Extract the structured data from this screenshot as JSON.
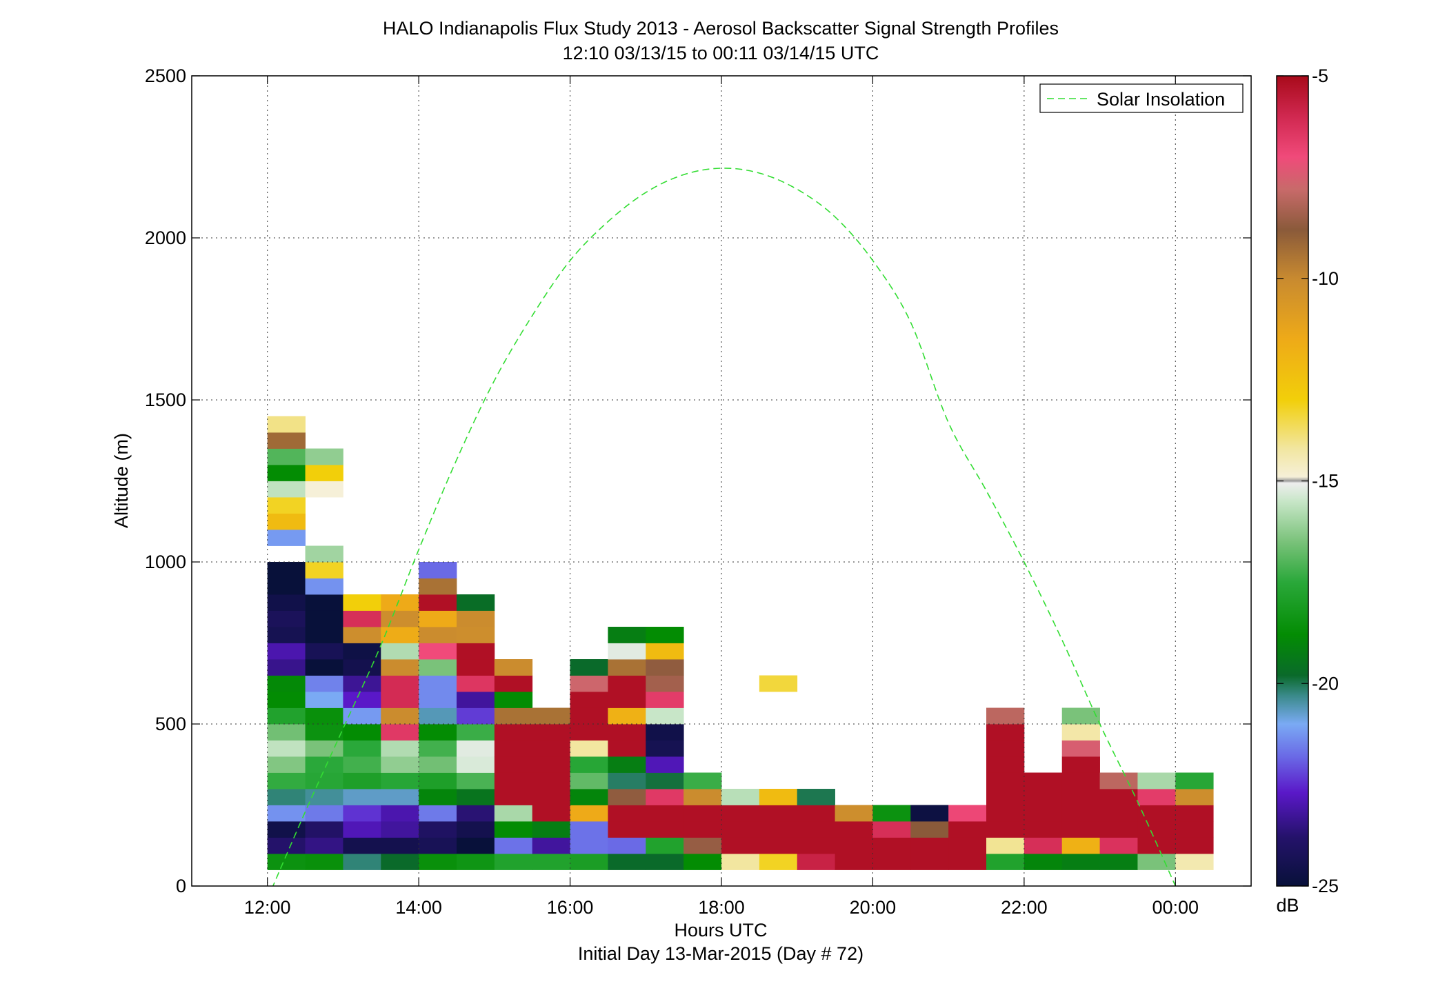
{
  "chart_data": {
    "type": "heatmap",
    "title": "HALO Indianapolis Flux Study 2013 - Aerosol Backscatter Signal Strength Profiles",
    "subtitle": "12:10 03/13/15 to 00:11 03/14/15  UTC",
    "xlabel": "Hours UTC",
    "xlabel2": "Initial Day 13-Mar-2015 (Day # 72)",
    "ylabel": "Altitude (m)",
    "xlim": [
      11,
      25
    ],
    "ylim": [
      0,
      2500
    ],
    "x_ticks": [
      12,
      14,
      16,
      18,
      20,
      22,
      24
    ],
    "x_tick_labels": [
      "12:00",
      "14:00",
      "16:00",
      "18:00",
      "20:00",
      "22:00",
      "00:00"
    ],
    "y_ticks": [
      0,
      500,
      1000,
      1500,
      2000,
      2500
    ],
    "y_tick_labels": [
      "0",
      "500",
      "1000",
      "1500",
      "2000",
      "2500"
    ],
    "grid": true,
    "legend": {
      "placement": "top-right",
      "entries": [
        {
          "label": "Solar Insolation",
          "color": "#33dd33",
          "style": "dashed"
        }
      ]
    },
    "colorbar": {
      "unit": "dB",
      "range": [
        -25,
        -5
      ],
      "ticks": [
        -5,
        -10,
        -15,
        -20,
        -25
      ],
      "tick_labels": [
        "-5",
        "-10",
        "-15",
        "-20",
        "-25"
      ],
      "stops": [
        {
          "v": -25,
          "c": "#08113a"
        },
        {
          "v": -23.8,
          "c": "#24126a"
        },
        {
          "v": -22.7,
          "c": "#5a18c8"
        },
        {
          "v": -21.8,
          "c": "#6a6ae6"
        },
        {
          "v": -21,
          "c": "#7aaaf4"
        },
        {
          "v": -20.3,
          "c": "#3a8a8a"
        },
        {
          "v": -19.8,
          "c": "#0a6a2a"
        },
        {
          "v": -18.8,
          "c": "#038c03"
        },
        {
          "v": -17.5,
          "c": "#2aa83a"
        },
        {
          "v": -16.5,
          "c": "#7ac27a"
        },
        {
          "v": -15.5,
          "c": "#c8e6c8"
        },
        {
          "v": -15.05,
          "c": "#eeeeee"
        },
        {
          "v": -15,
          "c": "#999999"
        },
        {
          "v": -14.9,
          "c": "#f6f0d8"
        },
        {
          "v": -14.2,
          "c": "#f2e6a0"
        },
        {
          "v": -13,
          "c": "#f2cf0a"
        },
        {
          "v": -11.5,
          "c": "#eeaa18"
        },
        {
          "v": -10,
          "c": "#c88a30"
        },
        {
          "v": -8.8,
          "c": "#8a5a3a"
        },
        {
          "v": -7.8,
          "c": "#c86a6a"
        },
        {
          "v": -7,
          "c": "#f04a7a"
        },
        {
          "v": -6,
          "c": "#d02850"
        },
        {
          "v": -5,
          "c": "#a80a1a"
        }
      ]
    },
    "solar_insolation": {
      "x": [
        12.0,
        12.5,
        13.0,
        13.5,
        14.0,
        14.5,
        15.0,
        15.5,
        16.0,
        16.5,
        17.0,
        17.5,
        18.0,
        18.5,
        19.0,
        19.5,
        20.0,
        20.5,
        21.0,
        21.5,
        22.0,
        22.5,
        23.0,
        23.5,
        24.0
      ],
      "y": [
        -40,
        229,
        486,
        743,
        1038,
        1315,
        1560,
        1760,
        1930,
        2050,
        2140,
        2195,
        2215,
        2200,
        2150,
        2065,
        1930,
        1740,
        1430,
        1220,
        1000,
        760,
        500,
        260,
        0
      ]
    },
    "time_bins": [
      12.25,
      12.75,
      13.25,
      13.75,
      14.25,
      14.75,
      15.25,
      15.75,
      16.25,
      16.75,
      17.25,
      17.75,
      18.25,
      18.75,
      19.25,
      19.75,
      20.25,
      20.75,
      21.25,
      21.75,
      22.25,
      22.75,
      23.25,
      23.75,
      24.25
    ],
    "altitude_bin_size_m": 50,
    "columns": [
      {
        "t": 12.25,
        "v": [
          -18.5,
          -23.8,
          -24.6,
          -21.3,
          -20.2,
          -17.4,
          -16.4,
          -15.6,
          -16.6,
          -17.8,
          -18.8,
          -18.9,
          -23.4,
          -23.0,
          -24.4,
          -24.2,
          -24.6,
          -25.0,
          -25.0,
          null,
          -21.2,
          -12.2,
          -13.2,
          -15.6,
          -18.8,
          -17.0,
          -9.2,
          -14.0
        ]
      },
      {
        "t": 12.75,
        "v": [
          -18.6,
          -23.5,
          -23.9,
          -21.6,
          -20.4,
          -17.6,
          -17.5,
          -16.5,
          -18.5,
          -18.6,
          -21.0,
          -21.5,
          -25.0,
          -24.3,
          -25.0,
          -25.0,
          -25.0,
          -21.3,
          -13.2,
          -16.0,
          null,
          null,
          null,
          -14.9,
          -13.0,
          -16.2
        ]
      },
      {
        "t": 13.25,
        "v": [
          -20.2,
          -24.5,
          -22.9,
          -22.4,
          -20.7,
          -17.9,
          -17.2,
          -17.5,
          -18.8,
          -21.2,
          -22.7,
          -23.3,
          -24.5,
          -24.7,
          -10.2,
          -6.2,
          -13.0
        ]
      },
      {
        "t": 13.75,
        "v": [
          -19.8,
          -24.5,
          -23.2,
          -23.0,
          -20.7,
          -17.6,
          -16.2,
          -15.8,
          -6.5,
          -10.1,
          -6.1,
          -6.1,
          -10.1,
          -15.8,
          -11.6,
          -10.2,
          -11.5
        ]
      },
      {
        "t": 14.25,
        "v": [
          -18.6,
          -24.3,
          -24.0,
          -21.6,
          -19.0,
          -17.9,
          -16.6,
          -17.2,
          -18.8,
          -20.6,
          -21.4,
          -21.4,
          -16.5,
          -7.0,
          -10.1,
          -11.5,
          -5.2,
          -9.4,
          -21.8
        ]
      },
      {
        "t": 14.75,
        "v": [
          -18.4,
          -25.0,
          -24.5,
          -23.7,
          -19.5,
          -17.1,
          -15.3,
          -15.2,
          -17.3,
          -22.3,
          -23.2,
          -6.4,
          -5.2,
          -5.2,
          -10.2,
          -10.1,
          -19.7
        ]
      },
      {
        "t": 15.25,
        "v": [
          -17.8,
          -21.7,
          -18.8,
          -15.9,
          -5.2,
          -5.2,
          -5.2,
          -5.2,
          -5.2,
          -9.4,
          -18.8,
          -5.2,
          -10.1
        ]
      },
      {
        "t": 15.75,
        "v": [
          -17.8,
          -23.2,
          -19.2,
          -5.2,
          -5.2,
          -5.2,
          -5.2,
          -5.2,
          -5.2,
          -9.4
        ]
      },
      {
        "t": 16.25,
        "v": [
          -18.0,
          -21.7,
          -21.7,
          -11.5,
          -19.0,
          -16.8,
          -17.6,
          -14.2,
          -5.2,
          -5.2,
          -5.2,
          -7.7,
          -19.8
        ]
      },
      {
        "t": 16.75,
        "v": [
          -19.8,
          -21.8,
          -5.2,
          -5.2,
          -8.7,
          -20.1,
          -19.2,
          -5.2,
          -5.2,
          -11.8,
          -5.2,
          -5.2,
          -9.4,
          -15.2,
          -19.2
        ]
      },
      {
        "t": 17.25,
        "v": [
          -19.8,
          -17.8,
          -5.2,
          -5.2,
          -6.5,
          -19.9,
          -22.9,
          -24.4,
          -24.6,
          -15.5,
          -6.6,
          -8.4,
          -8.7,
          -12.2,
          -18.8
        ]
      },
      {
        "t": 17.75,
        "v": [
          -18.8,
          -8.6,
          -5.2,
          -5.2,
          -10.1,
          -17.3
        ]
      },
      {
        "t": 18.25,
        "v": [
          -14.2,
          -5.2,
          -5.2,
          -5.2,
          -15.7
        ]
      },
      {
        "t": 18.75,
        "v": [
          -13.2,
          -5.2,
          -5.2,
          -5.2,
          -12.2,
          null,
          null,
          null,
          null,
          null,
          null,
          -13.4
        ]
      },
      {
        "t": 19.25,
        "v": [
          -5.8,
          -5.2,
          -5.2,
          -5.2,
          -20.0
        ]
      },
      {
        "t": 19.75,
        "v": [
          -5.2,
          -5.2,
          -5.2,
          -10.2
        ]
      },
      {
        "t": 20.25,
        "v": [
          -5.2,
          -5.2,
          -6.2,
          -18.5
        ]
      },
      {
        "t": 20.75,
        "v": [
          -5.2,
          -5.2,
          -8.8,
          -24.8
        ]
      },
      {
        "t": 21.25,
        "v": [
          -5.2,
          -5.2,
          -5.2,
          -6.9
        ]
      },
      {
        "t": 21.75,
        "v": [
          -17.8,
          -14.1,
          -5.2,
          -5.2,
          -5.2,
          -5.2,
          -5.2,
          -5.2,
          -5.2,
          -8.0
        ]
      },
      {
        "t": 22.25,
        "v": [
          -19.0,
          -6.2,
          -5.2,
          -5.2,
          -5.2,
          -5.2
        ]
      },
      {
        "t": 22.75,
        "v": [
          -19.2,
          -11.8,
          -5.2,
          -5.2,
          -5.2,
          -5.2,
          -5.2,
          -7.5,
          -14.3,
          -16.5
        ]
      },
      {
        "t": 23.25,
        "v": [
          -19.2,
          -6.3,
          -5.2,
          -5.2,
          -5.2,
          -8.0
        ]
      },
      {
        "t": 23.75,
        "v": [
          -16.5,
          -5.2,
          -5.2,
          -5.2,
          -6.6,
          -15.9
        ]
      },
      {
        "t": 24.25,
        "v": [
          -14.4,
          -5.2,
          -5.2,
          -5.2,
          -10.2,
          -17.6
        ]
      }
    ]
  }
}
